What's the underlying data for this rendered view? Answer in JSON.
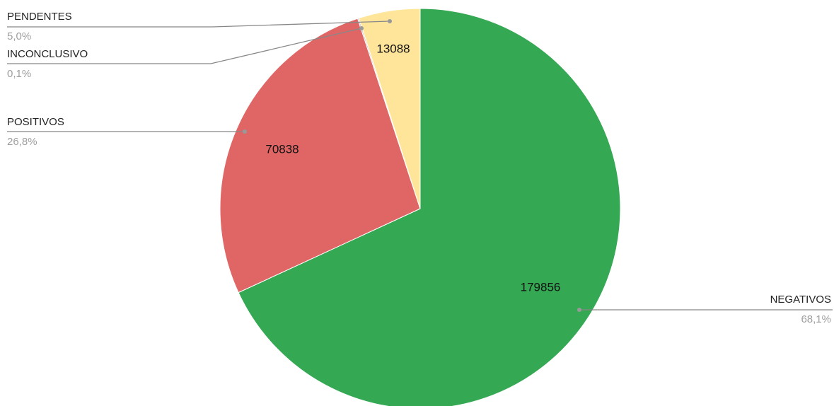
{
  "chart_data": {
    "type": "pie",
    "categories": [
      "NEGATIVOS",
      "POSITIVOS",
      "INCONCLUSIVO",
      "PENDENTES"
    ],
    "values": [
      179856,
      70838,
      264,
      13088
    ],
    "value_labels": [
      "179856",
      "70838",
      null,
      "13088"
    ],
    "percent_labels": [
      "68,1%",
      "26,8%",
      "0,1%",
      "5,0%"
    ],
    "colors": [
      "#34a853",
      "#e06666",
      "#b7b7b7",
      "#ffe599"
    ]
  }
}
